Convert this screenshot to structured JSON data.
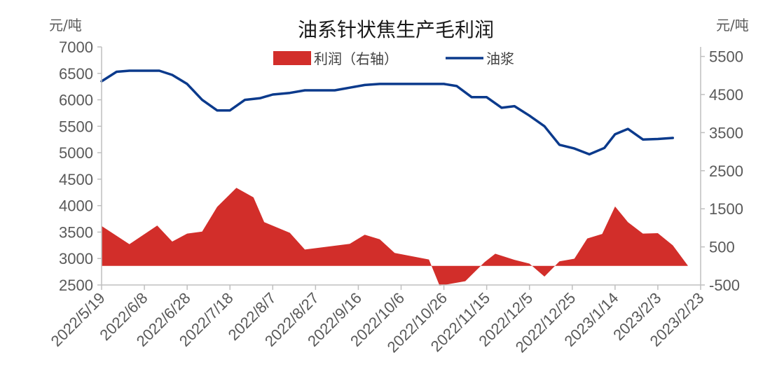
{
  "chart_data": {
    "type": "area+line",
    "title": "油系针状焦生产毛利润",
    "left_unit": "元/吨",
    "right_unit": "元/吨",
    "left_axis": {
      "min": 2500,
      "max": 7000,
      "step": 500,
      "ticks": [
        "7000",
        "6500",
        "6000",
        "5500",
        "5000",
        "4500",
        "4000",
        "3500",
        "3000",
        "2500"
      ]
    },
    "right_axis": {
      "min": -500,
      "max": 5750,
      "step": 1000,
      "ticks": [
        "5500",
        "4500",
        "3500",
        "2500",
        "1500",
        "500",
        "-500"
      ]
    },
    "x_tick_labels": [
      "2022/5/19",
      "2022/6/8",
      "2022/6/28",
      "2022/7/18",
      "2022/8/7",
      "2022/8/27",
      "2022/9/16",
      "2022/10/6",
      "2022/10/26",
      "2022/11/15",
      "2022/12/5",
      "2022/12/25",
      "2023/1/14",
      "2023/2/3",
      "2023/2/23"
    ],
    "x_range": [
      "2022/5/19",
      "2023/2/23"
    ],
    "series": [
      {
        "name": "利润（右轴）",
        "type": "area",
        "axis": "right",
        "color": "#d22e2a",
        "points": [
          [
            "2022/5/19",
            1050
          ],
          [
            "2022/6/1",
            570
          ],
          [
            "2022/6/14",
            1060
          ],
          [
            "2022/6/21",
            640
          ],
          [
            "2022/6/28",
            850
          ],
          [
            "2022/7/5",
            900
          ],
          [
            "2022/7/12",
            1550
          ],
          [
            "2022/7/21",
            2050
          ],
          [
            "2022/7/29",
            1800
          ],
          [
            "2022/8/3",
            1150
          ],
          [
            "2022/8/15",
            870
          ],
          [
            "2022/8/22",
            430
          ],
          [
            "2022/9/12",
            580
          ],
          [
            "2022/9/19",
            820
          ],
          [
            "2022/9/26",
            700
          ],
          [
            "2022/10/3",
            340
          ],
          [
            "2022/10/19",
            170
          ],
          [
            "2022/10/24",
            -520
          ],
          [
            "2022/11/5",
            -400
          ],
          [
            "2022/11/14",
            100
          ],
          [
            "2022/11/19",
            320
          ],
          [
            "2022/11/28",
            160
          ],
          [
            "2022/12/5",
            60
          ],
          [
            "2022/12/12",
            -280
          ],
          [
            "2022/12/19",
            120
          ],
          [
            "2022/12/26",
            190
          ],
          [
            "2023/1/1",
            720
          ],
          [
            "2023/1/8",
            840
          ],
          [
            "2023/1/14",
            1560
          ],
          [
            "2023/1/20",
            1150
          ],
          [
            "2023/1/27",
            850
          ],
          [
            "2023/2/3",
            860
          ],
          [
            "2023/2/10",
            540
          ],
          [
            "2023/2/17",
            10
          ]
        ]
      },
      {
        "name": "油浆",
        "type": "line",
        "axis": "left",
        "color": "#0b3a8c",
        "points": [
          [
            "2022/5/19",
            6350
          ],
          [
            "2022/5/26",
            6530
          ],
          [
            "2022/6/1",
            6550
          ],
          [
            "2022/6/8",
            6550
          ],
          [
            "2022/6/15",
            6550
          ],
          [
            "2022/6/21",
            6470
          ],
          [
            "2022/6/28",
            6300
          ],
          [
            "2022/7/5",
            6000
          ],
          [
            "2022/7/12",
            5800
          ],
          [
            "2022/7/18",
            5800
          ],
          [
            "2022/7/25",
            6000
          ],
          [
            "2022/8/1",
            6030
          ],
          [
            "2022/8/7",
            6100
          ],
          [
            "2022/8/15",
            6130
          ],
          [
            "2022/8/22",
            6180
          ],
          [
            "2022/8/29",
            6180
          ],
          [
            "2022/9/5",
            6180
          ],
          [
            "2022/9/12",
            6230
          ],
          [
            "2022/9/19",
            6280
          ],
          [
            "2022/9/26",
            6300
          ],
          [
            "2022/10/3",
            6300
          ],
          [
            "2022/10/26",
            6300
          ],
          [
            "2022/11/1",
            6260
          ],
          [
            "2022/11/8",
            6050
          ],
          [
            "2022/11/15",
            6050
          ],
          [
            "2022/11/22",
            5850
          ],
          [
            "2022/11/28",
            5880
          ],
          [
            "2022/12/5",
            5700
          ],
          [
            "2022/12/12",
            5500
          ],
          [
            "2022/12/19",
            5150
          ],
          [
            "2022/12/26",
            5080
          ],
          [
            "2023/1/2",
            4970
          ],
          [
            "2023/1/9",
            5090
          ],
          [
            "2023/1/14",
            5350
          ],
          [
            "2023/1/20",
            5450
          ],
          [
            "2023/1/27",
            5250
          ],
          [
            "2023/2/3",
            5260
          ],
          [
            "2023/2/10",
            5280
          ]
        ]
      }
    ],
    "legend": {
      "placement": "top-center"
    },
    "grid": false
  }
}
